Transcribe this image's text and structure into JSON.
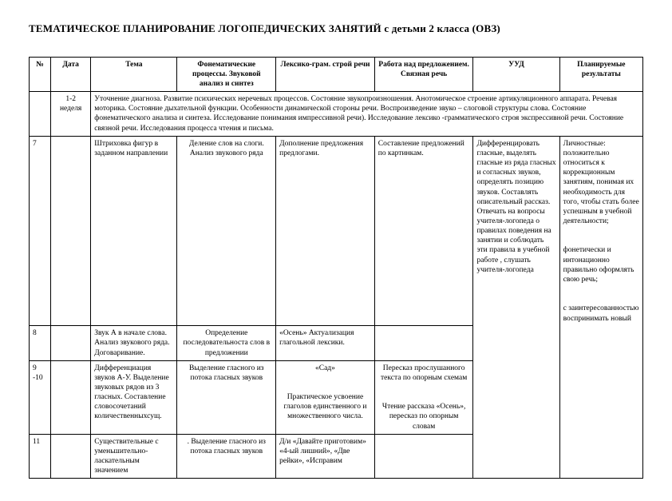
{
  "title": "ТЕМАТИЧЕСКОЕ ПЛАНИРОВАНИЕ ЛОГОПЕДИЧЕСКИХ ЗАНЯТИЙ  с детьми 2 класса (ОВЗ)",
  "headers": {
    "c0": "№",
    "c1": "Дата",
    "c2": "Тема",
    "c3": "Фонематические процессы. Звуковой анализ и синтез",
    "c4": "Лексико-грам. строй речи",
    "c5": "Работа над предложением. Связная речь",
    "c6": "УУД",
    "c7": "Планируемые результаты"
  },
  "row_diag": {
    "date": "1-2 неделя",
    "text": "Уточнение диагноза. Развитие психических неречевых процессов. Состояние звукопроизношения. Анотомическое строение артикуляционного аппарата. Речевая моторика. Состояние дыхательной функции. Особенности динамической стороны речи. Воспроизведение звуко – слоговой структуры слова. Состояние фонематического анализа и синтеза. Исследование понимания импрессивной речи). Исследование лексико  -грамматического строя экспрессивной речи. Состояние связной речи. Исследования процесса чтения и письма."
  },
  "row7": {
    "num": "7",
    "tema": "Штриховка фигур в заданном направлении",
    "phon": "Деление слов на слоги.  Анализ звукового ряда",
    "leks": "Дополнение предложения предлогами.",
    "rabota": "Составление предложений по картинкам."
  },
  "row8": {
    "num": "8",
    "tema": "Звук А в начале слова. Анализ звукового ряда. Договаривание.",
    "phon": "Определение последовательноста слов в предложении",
    "leks": "«Осень» Актуализация глагольной лексики."
  },
  "row9": {
    "num": "9 -10",
    "tema": "Дифференциация звуков А-У. Выделение звуковых рядов из 3 гласных. Составление словосочетаний количественныхсущ.",
    "phon": "Выделение гласного из потока гласных звуков",
    "leks": "«Сад»\n\nПрактическое усвоение глаголов единственного и множественного числа.",
    "rabota": "Пересказ прослушанного текста по опорным схемам\n\nЧтение рассказа «Осень», пересказ по опорным словам"
  },
  "row11": {
    "num": "11",
    "tema": "Существительные с уменьшительно-ласкательным значением",
    "phon": ". Выделение гласного из потока гласных звуков",
    "leks": "Д/и «Давайте приготовим» «4-ый лишний», «Две рейки», «Исправим"
  },
  "uud": "Дифференцировать гласные, выделять гласные из ряда гласных и согласных звуков, определять позицию звуков. Составлять описательный рассказ. Отвечать на вопросы учителя-логопеда о правилах поведения на занятии и соблюдать эти правила в учебной работе , слушать учителя-логопеда",
  "results": "Личностные: положительно относиться к коррекционным занятиям, понимая их необходимость для того, чтобы стать более успешным в учебной деятельности;\n\nфонетически и интонационно правильно оформлять свою речь;\n\nс заинтересованностью воспринимать новый"
}
